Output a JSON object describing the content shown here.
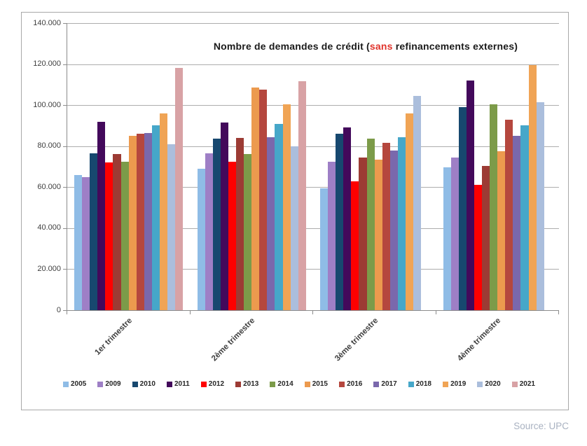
{
  "source_label": "Source: UPC",
  "chart_data": {
    "type": "bar",
    "title": {
      "part1": "Nombre de demandes de crédit (",
      "highlight": "sans",
      "part2": " refinancements externes)",
      "highlight_color": "#e0342c"
    },
    "categories": [
      "1er trimestre",
      "2ème trimestre",
      "3ème trimestre",
      "4ème trimestre"
    ],
    "series": [
      {
        "name": "2005",
        "color": "#8fbce6",
        "values": [
          66000,
          69000,
          59500,
          69500
        ]
      },
      {
        "name": "2009",
        "color": "#9e7fc6",
        "values": [
          65000,
          76500,
          72500,
          74500
        ]
      },
      {
        "name": "2010",
        "color": "#17486f",
        "values": [
          76500,
          83500,
          86000,
          99000
        ]
      },
      {
        "name": "2011",
        "color": "#43095b",
        "values": [
          92000,
          91500,
          89000,
          112000
        ]
      },
      {
        "name": "2012",
        "color": "#fe0000",
        "values": [
          72000,
          72500,
          63000,
          61000
        ]
      },
      {
        "name": "2013",
        "color": "#9c3b34",
        "values": [
          76000,
          84000,
          74500,
          70500
        ]
      },
      {
        "name": "2014",
        "color": "#7c9b49",
        "values": [
          72500,
          76000,
          83500,
          100500
        ]
      },
      {
        "name": "2015",
        "color": "#ec9a4e",
        "values": [
          85000,
          108500,
          73500,
          77500
        ]
      },
      {
        "name": "2016",
        "color": "#b5473e",
        "values": [
          86000,
          107500,
          81500,
          93000
        ]
      },
      {
        "name": "2017",
        "color": "#7a68ac",
        "values": [
          86500,
          84500,
          78000,
          85000
        ]
      },
      {
        "name": "2018",
        "color": "#46a7c9",
        "values": [
          90000,
          91000,
          84500,
          90000
        ]
      },
      {
        "name": "2019",
        "color": "#f0a455",
        "values": [
          96000,
          100500,
          96000,
          119500
        ]
      },
      {
        "name": "2020",
        "color": "#abbedc",
        "values": [
          81000,
          80000,
          104500,
          101500
        ]
      },
      {
        "name": "2021",
        "color": "#d8a2a5",
        "values": [
          118000,
          111500,
          null,
          null
        ]
      }
    ],
    "ylim": [
      0,
      140000
    ],
    "ytick_step": 20000,
    "ytick_labels": [
      "0",
      "20.000",
      "40.000",
      "60.000",
      "80.000",
      "100.000",
      "120.000",
      "140.000"
    ],
    "grid": true,
    "legend_position": "bottom"
  }
}
